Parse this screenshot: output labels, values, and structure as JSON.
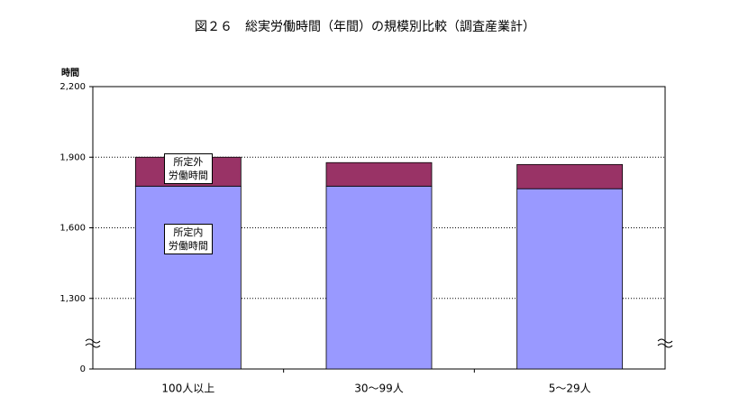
{
  "chart_data": {
    "type": "stacked_bar",
    "title": "図２６　総実労働時間（年間）の規模別比較（調査産業計）",
    "y_label": "時間",
    "categories": [
      "100人以上",
      "30～99人",
      "5～29人"
    ],
    "series": [
      {
        "name": "所定内\n労働時間",
        "color": "#9999ff",
        "values": [
          1777,
          1777,
          1766
        ]
      },
      {
        "name": "所定外\n労働時間",
        "color": "#993366",
        "values": [
          123,
          100,
          103
        ]
      }
    ],
    "ylim": [
      0,
      2200
    ],
    "yticks": [
      0,
      {
        "value": 1300,
        "label": "1,300"
      },
      {
        "value": 1600,
        "label": "1,600"
      },
      {
        "value": 1900,
        "label": "1,900"
      },
      {
        "value": 2200,
        "label": "2,200"
      }
    ],
    "grid": true
  }
}
